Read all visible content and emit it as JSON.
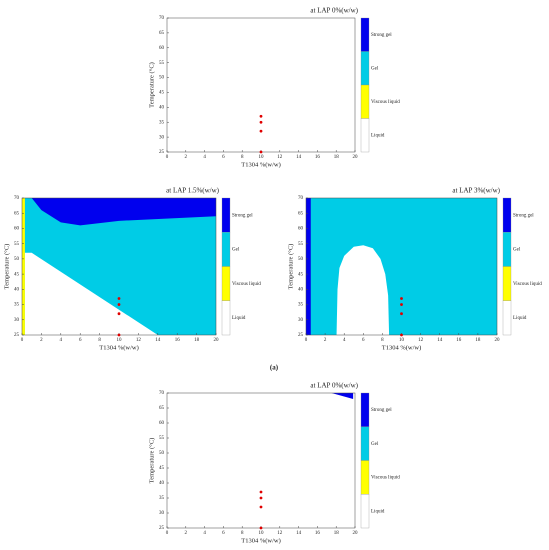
{
  "chart_data": [
    {
      "type": "phase",
      "title": "at LAP 0%(w/w)",
      "xlabel": "T1304 %(w/w)",
      "ylabel": "Temperature (°C)",
      "xlim": [
        0,
        20
      ],
      "ylim": [
        25,
        70
      ],
      "xticks": [
        0,
        2,
        4,
        6,
        8,
        10,
        12,
        14,
        16,
        18,
        20
      ],
      "yticks": [
        25,
        30,
        35,
        40,
        45,
        50,
        55,
        60,
        65,
        70
      ],
      "background": "#ffffff",
      "areas": [],
      "points": {
        "color": "#e00000",
        "x": [
          10,
          10,
          10,
          10
        ],
        "y": [
          37,
          35,
          32,
          25
        ]
      },
      "colorbar": {
        "labels": [
          "Strong gel",
          "Gel",
          "Viscous liquid",
          "Liquid"
        ],
        "colors": [
          "#0000ee",
          "#00cce6",
          "#ffff00",
          "#ffffff"
        ]
      }
    },
    {
      "type": "phase",
      "title": "at LAP 1.5%(w/w)",
      "xlabel": "T1304 %(w/w)",
      "ylabel": "Temperature (°C)",
      "xlim": [
        0,
        20
      ],
      "ylim": [
        25,
        70
      ],
      "xticks": [
        0,
        2,
        4,
        6,
        8,
        10,
        12,
        14,
        16,
        18,
        20
      ],
      "yticks": [
        25,
        30,
        35,
        40,
        45,
        50,
        55,
        60,
        65,
        70
      ],
      "background": "#00cce6",
      "areas": [
        {
          "color": "#ffffff",
          "x": [
            0.3,
            1,
            14,
            0.3
          ],
          "y": [
            52,
            52,
            25,
            25
          ]
        },
        {
          "color": "#0000ee",
          "x": [
            1,
            2,
            4,
            6,
            10,
            20,
            20
          ],
          "y": [
            70,
            66,
            62,
            61,
            62.5,
            64,
            70
          ]
        },
        {
          "color": "#ffff00",
          "x": [
            0,
            0.3,
            0.3,
            0
          ],
          "y": [
            70,
            70,
            25,
            25
          ]
        }
      ],
      "points": {
        "color": "#e00000",
        "x": [
          10,
          10,
          10,
          10
        ],
        "y": [
          37,
          35,
          32,
          25
        ]
      },
      "colorbar": {
        "labels": [
          "Strong gel",
          "Gel",
          "Viscous liquid",
          "Liquid"
        ],
        "colors": [
          "#0000ee",
          "#00cce6",
          "#ffff00",
          "#ffffff"
        ]
      }
    },
    {
      "type": "phase",
      "title": "at LAP 3%(w/w)",
      "xlabel": "T1304 %(w/w)",
      "ylabel": "Temperature (°C)",
      "xlim": [
        0,
        20
      ],
      "ylim": [
        25,
        70
      ],
      "xticks": [
        0,
        2,
        4,
        6,
        8,
        10,
        12,
        14,
        16,
        18,
        20
      ],
      "yticks": [
        25,
        30,
        35,
        40,
        45,
        50,
        55,
        60,
        65,
        70
      ],
      "background": "#00cce6",
      "areas": [
        {
          "color": "#0000ee",
          "x": [
            0,
            0.5,
            0.5,
            0
          ],
          "y": [
            70,
            70,
            25,
            25
          ]
        },
        {
          "color": "#ffffff",
          "x": [
            3.2,
            3.3,
            3.5,
            4,
            5,
            6,
            7,
            7.8,
            8.3,
            8.6,
            8.7
          ],
          "y": [
            25,
            40,
            47,
            51,
            54,
            54.5,
            53.5,
            50,
            45,
            38,
            25
          ]
        }
      ],
      "points": {
        "color": "#e00000",
        "x": [
          10,
          10,
          10,
          10
        ],
        "y": [
          37,
          35,
          32,
          25
        ]
      },
      "colorbar": {
        "labels": [
          "Strong gel",
          "Gel",
          "Viscous liquid",
          "Liquid"
        ],
        "colors": [
          "#0000ee",
          "#00cce6",
          "#ffff00",
          "#ffffff"
        ]
      }
    },
    {
      "type": "phase",
      "title": "at LAP 0%(w/w)",
      "xlabel": "T1304 %(w/w)",
      "ylabel": "Temperature (°C)",
      "xlim": [
        0,
        20
      ],
      "ylim": [
        25,
        70
      ],
      "xticks": [
        0,
        2,
        4,
        6,
        8,
        10,
        12,
        14,
        16,
        18,
        20
      ],
      "yticks": [
        25,
        30,
        35,
        40,
        45,
        50,
        55,
        60,
        65,
        70
      ],
      "background": "#ffffff",
      "areas": [
        {
          "color": "#0000ee",
          "x": [
            17.5,
            19.8,
            19.8
          ],
          "y": [
            70,
            68,
            70
          ]
        }
      ],
      "points": {
        "color": "#e00000",
        "x": [
          10,
          10,
          10,
          10
        ],
        "y": [
          37,
          35,
          32,
          25
        ]
      },
      "colorbar": {
        "labels": [
          "Strong gel",
          "Gel",
          "Viscous liquid",
          "Liquid"
        ],
        "colors": [
          "#0000ee",
          "#00cce6",
          "#ffff00",
          "#ffffff"
        ]
      }
    }
  ],
  "caption": "(a)"
}
